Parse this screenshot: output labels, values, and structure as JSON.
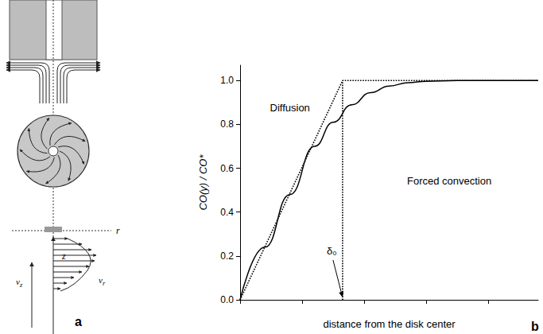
{
  "chart_data": {
    "type": "line",
    "panel_label": "b",
    "xlabel": "distance from the disk center",
    "ylabel": "CO(y) / CO*",
    "xlim": [
      0,
      4.8
    ],
    "xticks": [
      0,
      1,
      2,
      3,
      4
    ],
    "ylim": [
      0,
      1.07
    ],
    "yticks": [
      {
        "value": 0,
        "label": "0.0"
      },
      {
        "value": 0.2,
        "label": "0.2"
      },
      {
        "value": 0.4,
        "label": "0.4"
      },
      {
        "value": 0.6,
        "label": "0.6"
      },
      {
        "value": 0.8,
        "label": "0.8"
      },
      {
        "value": 1,
        "label": "1.0"
      }
    ],
    "tick_labels": "y",
    "grid": false,
    "annotations": [
      {
        "text": "Diffusion"
      },
      {
        "text": "Forced convection"
      },
      {
        "text": "δ₀",
        "x": 1.65,
        "y": 0
      }
    ],
    "series": [
      {
        "x": [
          0,
          0.4,
          0.8,
          1.2,
          1.5,
          1.8,
          2.1,
          2.4,
          2.7,
          3.0,
          3.5,
          4.0,
          4.8
        ],
        "values": [
          0,
          0.24,
          0.48,
          0.7,
          0.81,
          0.89,
          0.945,
          0.975,
          0.99,
          0.997,
          1.0,
          1.0,
          1.0
        ],
        "color": "#000000",
        "line_style": "solid",
        "marker": "none"
      },
      {
        "x": [
          0,
          1.65,
          4.8
        ],
        "values": [
          0,
          1.0,
          1.0
        ],
        "color": "#000000",
        "line_style": "dotted",
        "marker": "none"
      },
      {
        "x": [
          1.65,
          1.65
        ],
        "values": [
          0,
          1.0
        ],
        "color": "#000000",
        "line_style": "dotted",
        "marker": "none"
      }
    ]
  },
  "diagram": {
    "panel_label": "a",
    "axis_labels": [
      "r",
      "z"
    ],
    "velocity_labels": [
      "vz",
      "vr"
    ]
  }
}
